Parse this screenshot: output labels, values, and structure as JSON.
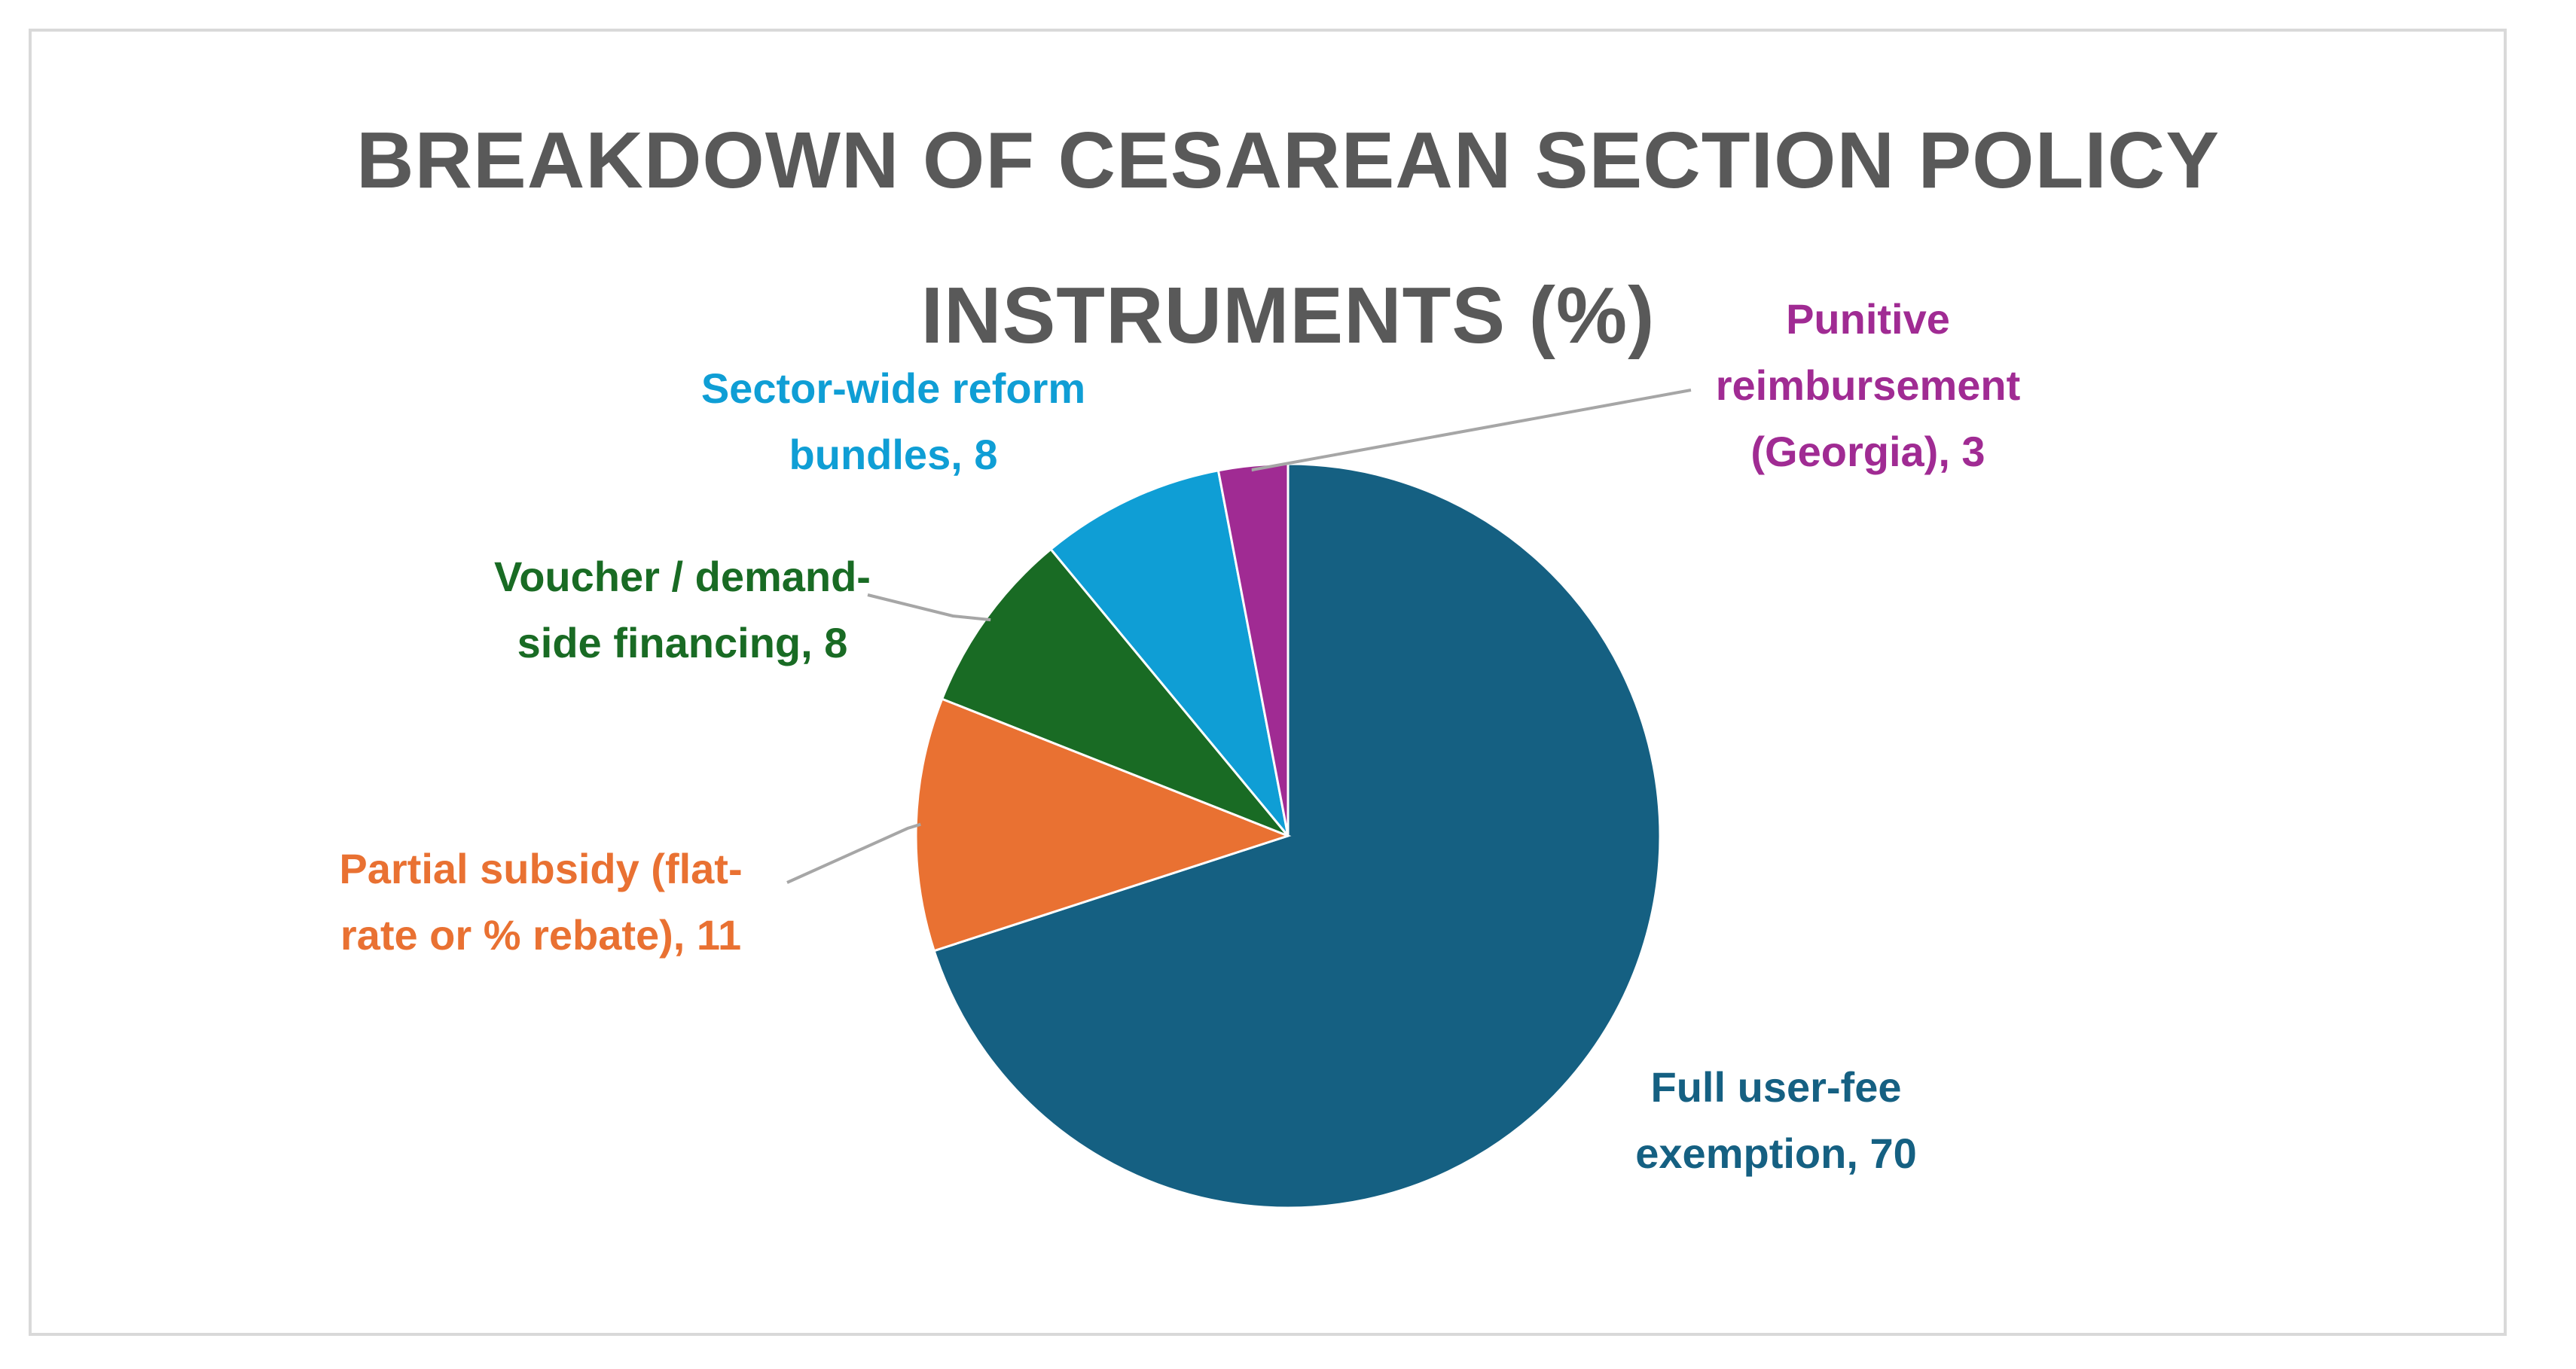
{
  "chart_data": {
    "type": "pie",
    "title": "BREAKDOWN OF CESAREAN SECTION POLICY INSTRUMENTS (%)",
    "title_lines": [
      "BREAKDOWN OF CESAREAN SECTION POLICY",
      "INSTRUMENTS (%)"
    ],
    "legend": "none",
    "slices": [
      {
        "label": "Full user-fee exemption",
        "value": 70,
        "color": "#156082",
        "label_lines": [
          "Full user-fee",
          "exemption, 70"
        ]
      },
      {
        "label": "Partial subsidy (flat-rate or % rebate)",
        "value": 11,
        "color": "#E97132",
        "label_lines": [
          "Partial subsidy (flat-",
          "rate or % rebate), 11"
        ]
      },
      {
        "label": "Voucher / demand-side financing",
        "value": 8,
        "color": "#196B24",
        "label_lines": [
          "Voucher / demand-",
          "side financing, 8"
        ]
      },
      {
        "label": "Sector-wide reform bundles",
        "value": 8,
        "color": "#0F9ED5",
        "label_lines": [
          "Sector-wide reform",
          "bundles, 8"
        ]
      },
      {
        "label": "Punitive reimbursement (Georgia)",
        "value": 3,
        "color": "#A02B93",
        "label_lines": [
          "Punitive",
          "reimbursement",
          "(Georgia), 3"
        ]
      }
    ]
  }
}
